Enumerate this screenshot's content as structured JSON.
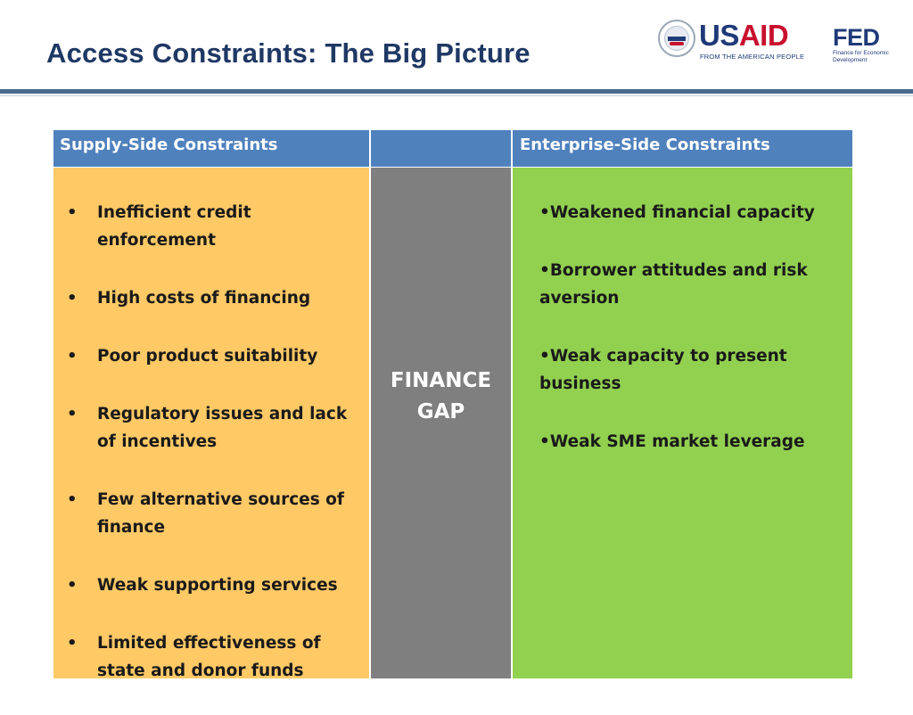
{
  "slide": {
    "title": "Access Constraints: The Big Picture"
  },
  "logos": {
    "usaid": {
      "word_us": "US",
      "word_aid": "AID",
      "tagline": "FROM THE AMERICAN PEOPLE"
    },
    "fed": {
      "word": "FED",
      "tagline": "Finance for Economic Development"
    }
  },
  "table": {
    "headers": {
      "left": "Supply-Side Constraints",
      "middle": "",
      "right": "Enterprise-Side Constraints"
    },
    "supply_side": [
      "Inefficient credit enforcement",
      "High costs of financing",
      "Poor product suitability",
      "Regulatory issues and lack of incentives",
      "Few alternative sources of finance",
      "Weak supporting services",
      "Limited effectiveness of state and donor funds"
    ],
    "middle_label": [
      "FINANCE",
      "GAP"
    ],
    "enterprise_side": [
      "•Weakened financial capacity",
      "•Borrower attitudes and risk aversion",
      "•Weak capacity to present business",
      "•Weak SME market leverage"
    ]
  },
  "colors": {
    "title": "#1f3864",
    "header_bg": "#4f81bd",
    "supply_bg": "#ffc966",
    "gap_bg": "#7f7f7f",
    "enterprise_bg": "#92d050",
    "rule": "#4a6a8e"
  }
}
